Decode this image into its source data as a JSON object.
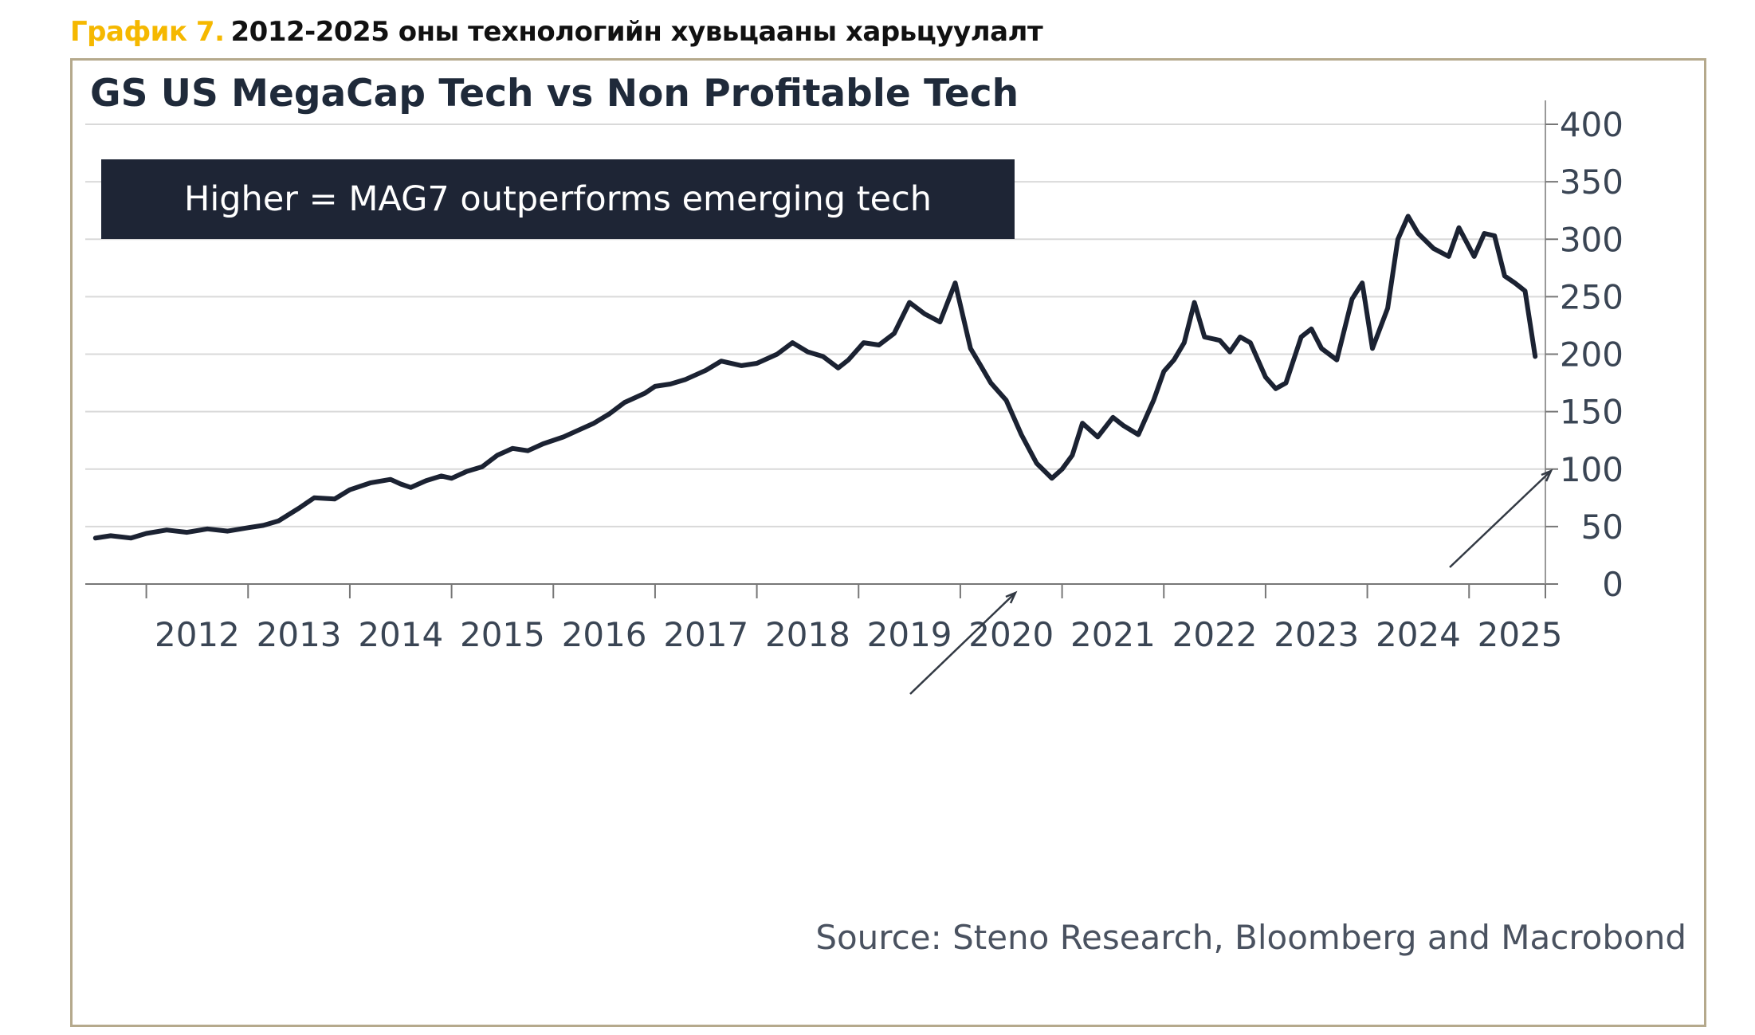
{
  "caption": {
    "label": "График 7.",
    "text": "2012-2025 оны технологийн хувьцааны харьцуулалт"
  },
  "colors": {
    "caption_label": "#f5b800",
    "frame_border": "#b5a98c",
    "series_line": "#1b2232",
    "annotation_bg": "#1e2535",
    "grid": "#d9d9d9"
  },
  "chart_data": {
    "type": "line",
    "title": "GS US MegaCap Tech vs Non Profitable Tech",
    "xlabel": "",
    "ylabel": "",
    "xlim": [
      2011.4,
      2025.75
    ],
    "ylim": [
      0,
      400
    ],
    "y_ticks": [
      0,
      50,
      100,
      150,
      200,
      250,
      300,
      350,
      400
    ],
    "x_tick_labels": [
      "2012",
      "2013",
      "2014",
      "2015",
      "2016",
      "2017",
      "2018",
      "2019",
      "2020",
      "2021",
      "2022",
      "2023",
      "2024",
      "2025"
    ],
    "grid": true,
    "y_axis_side": "right",
    "annotation": "Higher = MAG7 outperforms emerging tech",
    "source": "Source: Steno Research, Bloomberg and Macrobond",
    "series": [
      {
        "name": "GS US MegaCap Tech vs Non Profitable Tech",
        "x": [
          2011.5,
          2011.65,
          2011.85,
          2012.0,
          2012.2,
          2012.4,
          2012.6,
          2012.8,
          2013.0,
          2013.15,
          2013.3,
          2013.5,
          2013.65,
          2013.85,
          2014.0,
          2014.2,
          2014.4,
          2014.5,
          2014.6,
          2014.75,
          2014.9,
          2015.0,
          2015.15,
          2015.3,
          2015.45,
          2015.6,
          2015.75,
          2015.9,
          2016.1,
          2016.25,
          2016.4,
          2016.55,
          2016.7,
          2016.9,
          2017.0,
          2017.15,
          2017.3,
          2017.5,
          2017.65,
          2017.85,
          2018.0,
          2018.2,
          2018.35,
          2018.5,
          2018.65,
          2018.8,
          2018.9,
          2019.05,
          2019.2,
          2019.35,
          2019.5,
          2019.65,
          2019.8,
          2019.95,
          2020.1,
          2020.2,
          2020.3,
          2020.45,
          2020.6,
          2020.75,
          2020.9,
          2021.0,
          2021.1,
          2021.2,
          2021.35,
          2021.5,
          2021.6,
          2021.75,
          2021.9,
          2022.0,
          2022.1,
          2022.2,
          2022.3,
          2022.4,
          2022.55,
          2022.65,
          2022.75,
          2022.85,
          2023.0,
          2023.1,
          2023.2,
          2023.35,
          2023.45,
          2023.55,
          2023.7,
          2023.85,
          2023.95,
          2024.05,
          2024.2,
          2024.3,
          2024.4,
          2024.5,
          2024.65,
          2024.8,
          2024.9,
          2025.05,
          2025.15,
          2025.25,
          2025.35,
          2025.45,
          2025.55,
          2025.65
        ],
        "values": [
          40,
          42,
          40,
          44,
          47,
          45,
          48,
          46,
          49,
          51,
          55,
          66,
          75,
          74,
          82,
          88,
          91,
          87,
          84,
          90,
          94,
          92,
          98,
          102,
          112,
          118,
          116,
          122,
          128,
          134,
          140,
          148,
          158,
          166,
          172,
          174,
          178,
          186,
          194,
          190,
          192,
          200,
          210,
          202,
          198,
          188,
          195,
          210,
          208,
          218,
          245,
          235,
          228,
          262,
          205,
          190,
          175,
          160,
          130,
          105,
          92,
          100,
          112,
          140,
          128,
          145,
          138,
          130,
          160,
          185,
          195,
          210,
          245,
          215,
          212,
          202,
          215,
          210,
          180,
          170,
          175,
          215,
          222,
          205,
          195,
          248,
          262,
          205,
          240,
          300,
          320,
          305,
          292,
          285,
          310,
          285,
          305,
          303,
          268,
          262,
          255,
          198
        ]
      }
    ]
  }
}
